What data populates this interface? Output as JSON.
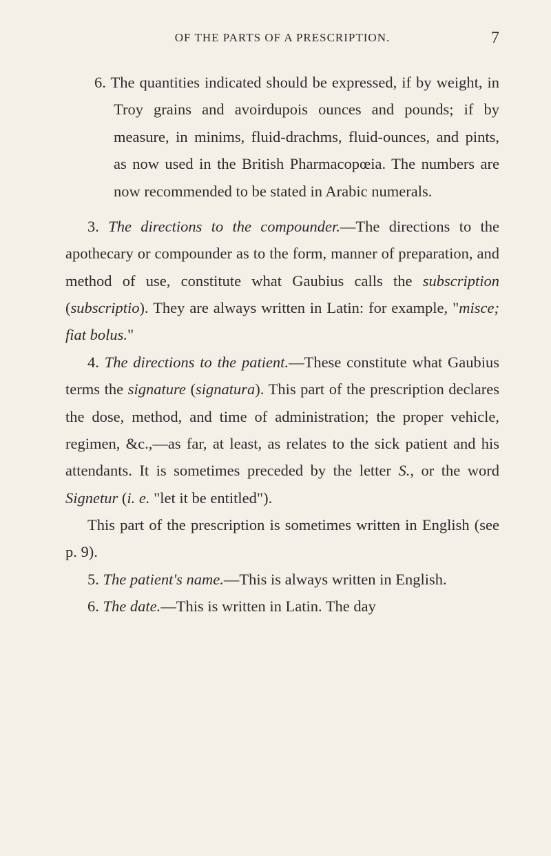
{
  "header": {
    "title": "OF THE PARTS OF A PRESCRIPTION.",
    "pageNumber": "7"
  },
  "item6": {
    "num": "6.",
    "text": " The quantities indicated should be expressed, if by weight, in Troy grains and avoirdupois ounces and pounds; if by measure, in minims, fluid-drachms, fluid-ounces, and pints, as now used in the British Pharmacopœia. The numbers are now recommended to be stated in Arabic numerals."
  },
  "item3": {
    "num": "3. ",
    "italic1": "The directions to the compounder.",
    "text1": "—The directions to the apothecary or compounder as to the form, manner of preparation, and method of use, constitute what Gaubius calls the ",
    "italic2": "subscription",
    "text2": " (",
    "italic3": "subscriptio",
    "text3": "). They are always written in Latin: for example, \"",
    "italic4": "misce; fiat bolus.",
    "text4": "\""
  },
  "item4": {
    "num": "4. ",
    "italic1": "The directions to the patient.",
    "text1": "—These constitute what Gaubius terms the ",
    "italic2": "signature",
    "text2": " (",
    "italic3": "signatura",
    "text3": "). This part of the prescription declares the dose, method, and time of administration; the proper vehicle, regimen, &c.,—as far, at least, as relates to the sick patient and his attendants. It is sometimes preceded by the letter ",
    "italic4": "S.",
    "text4": ", or the word ",
    "italic5": "Signetur",
    "text5": " (",
    "italic6": "i. e.",
    "text6": " \"let it be entitled\")."
  },
  "item4b": {
    "text": "This part of the prescription is sometimes written in English (see p. 9)."
  },
  "item5": {
    "num": "5. ",
    "italic1": "The patient's name.",
    "text1": "—This is always written in English."
  },
  "item6b": {
    "num": "6. ",
    "italic1": "The date.",
    "text1": "—This is written in Latin. The day"
  }
}
